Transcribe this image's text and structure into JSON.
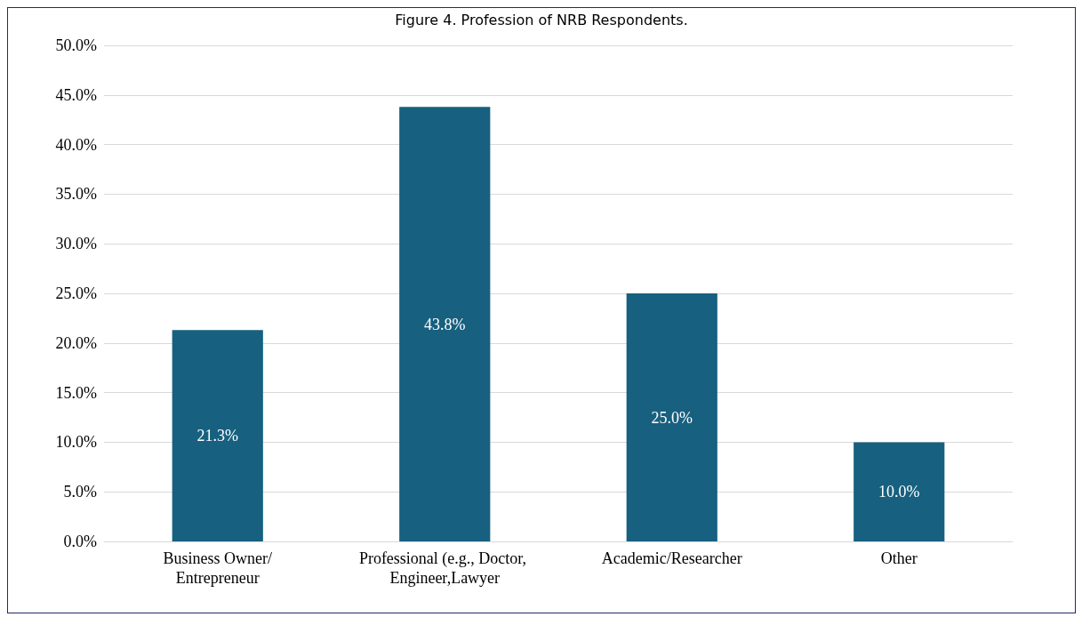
{
  "chart_data": {
    "type": "bar",
    "title": "Figure 4. Profession of NRB Respondents.",
    "categories": [
      "Business Owner/Entrepreneur",
      "Professional (e.g., Doctor, Engineer,Lawyer",
      "Academic/Researcher",
      "Other"
    ],
    "values": [
      21.3,
      43.8,
      25.0,
      10.0
    ],
    "color": "#17607f",
    "value_labels": [
      "21.3%",
      "43.8%",
      "25.0%",
      "10.0%"
    ],
    "grid": "y",
    "ylim": [
      0,
      50
    ],
    "yticks": [
      {
        "value": 0,
        "label": "0.0%"
      },
      {
        "value": 5,
        "label": "5.0%"
      },
      {
        "value": 10,
        "label": "10.0%"
      },
      {
        "value": 15,
        "label": "15.0%"
      },
      {
        "value": 20,
        "label": "20.0%"
      },
      {
        "value": 25,
        "label": "25.0%"
      },
      {
        "value": 30,
        "label": "30.0%"
      },
      {
        "value": 35,
        "label": "35.0%"
      },
      {
        "value": 40,
        "label": "40.0%"
      },
      {
        "value": 45,
        "label": "45.0%"
      },
      {
        "value": 50,
        "label": "50.0%"
      }
    ]
  }
}
